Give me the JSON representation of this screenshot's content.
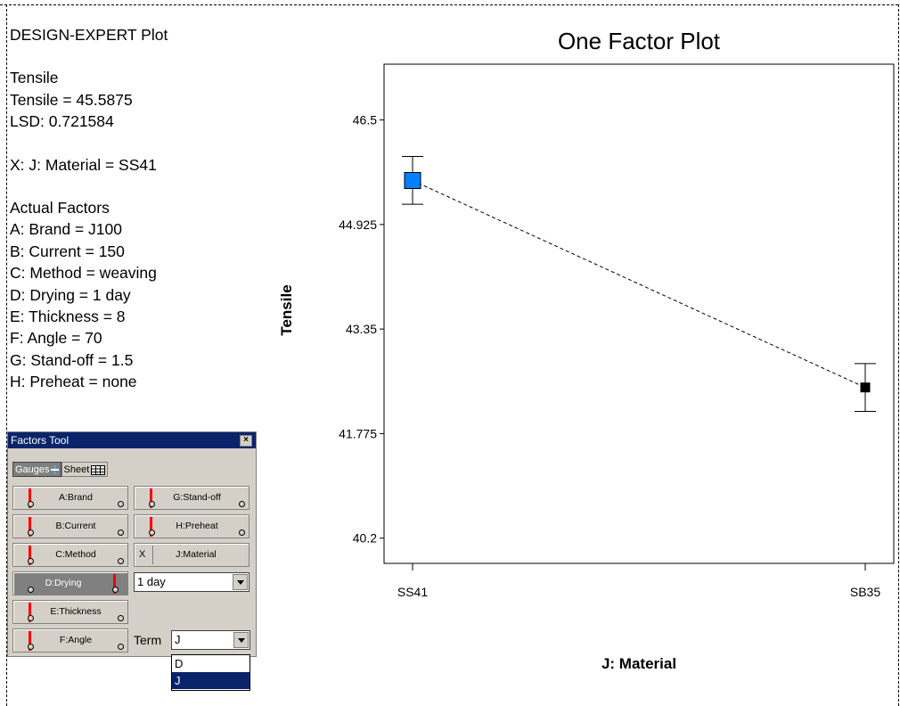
{
  "info": {
    "heading": "DESIGN-EXPERT Plot",
    "response": "Tensile",
    "response_value": "Tensile = 45.5875",
    "lsd": "LSD: 0.721584",
    "x_factor": "X: J: Material = SS41",
    "actual_factors_heading": "Actual Factors",
    "actual_factors": [
      "A: Brand = J100",
      "B: Current = 150",
      "C: Method = weaving",
      "D: Drying = 1 day",
      "E: Thickness = 8",
      "F: Angle = 70",
      "G: Stand-off = 1.5",
      "H: Preheat = none"
    ]
  },
  "factors_tool": {
    "title": "Factors Tool",
    "close_glyph": "×",
    "tab_gauges": "Gauges",
    "tab_sheet": "Sheet",
    "gauges": {
      "a": "A:Brand",
      "b": "B:Current",
      "c": "C:Method",
      "d": "D:Drying",
      "e": "E:Thickness",
      "f": "F:Angle",
      "g": "G:Stand-off",
      "h": "H:Preheat",
      "j": "J:Material",
      "j_mark": "X"
    },
    "drying_value": "1 day",
    "term_label": "Term",
    "term_value": "J",
    "term_options": [
      "D",
      "J"
    ],
    "term_selected": "J"
  },
  "chart_data": {
    "type": "line",
    "title": "One Factor Plot",
    "xlabel": "J: Material",
    "ylabel": "Tensile",
    "categories": [
      "SS41",
      "SB35"
    ],
    "yticks": [
      "46.5",
      "44.925",
      "43.35",
      "41.775",
      "40.2"
    ],
    "ytick_values": [
      46.5,
      44.925,
      43.35,
      41.775,
      40.2
    ],
    "ylim": [
      39.82,
      47.34
    ],
    "series": [
      {
        "values": [
          45.5875,
          42.47
        ],
        "lower": [
          45.23,
          42.11
        ],
        "upper": [
          45.95,
          42.83
        ],
        "marker_colors": [
          "#0080ff",
          "#000000"
        ]
      }
    ],
    "line_style": "dashed",
    "grid": false
  }
}
